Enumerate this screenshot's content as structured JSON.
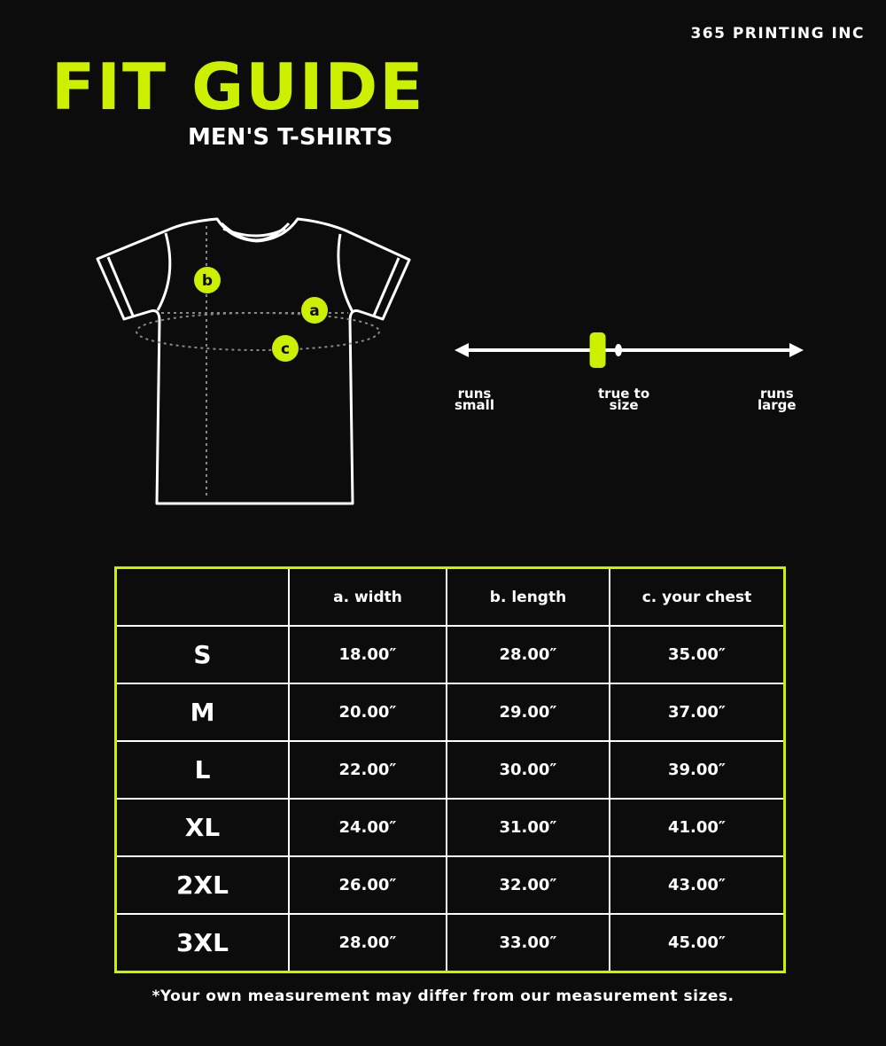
{
  "brand": "365 PRINTING INC",
  "title": "FIT GUIDE",
  "subtitle": "MEN'S T-SHIRTS",
  "colors": {
    "background": "#0c0c0c",
    "accent": "#ccf000",
    "text": "#ffffff"
  },
  "diagram": {
    "markers": [
      "a",
      "b",
      "c"
    ]
  },
  "fit_scale": {
    "labels": {
      "left": [
        "runs",
        "small"
      ],
      "center": [
        "true to",
        "size"
      ],
      "right": [
        "runs",
        "large"
      ]
    },
    "indicator_position": 0.41
  },
  "table": {
    "headers": [
      "",
      "a. width",
      "b. length",
      "c. your chest"
    ],
    "rows": [
      [
        "S",
        "18.00″",
        "28.00″",
        "35.00″"
      ],
      [
        "M",
        "20.00″",
        "29.00″",
        "37.00″"
      ],
      [
        "L",
        "22.00″",
        "30.00″",
        "39.00″"
      ],
      [
        "XL",
        "24.00″",
        "31.00″",
        "41.00″"
      ],
      [
        "2XL",
        "26.00″",
        "32.00″",
        "43.00″"
      ],
      [
        "3XL",
        "28.00″",
        "33.00″",
        "45.00″"
      ]
    ]
  },
  "footnote": "*Your own measurement may differ from our measurement sizes."
}
